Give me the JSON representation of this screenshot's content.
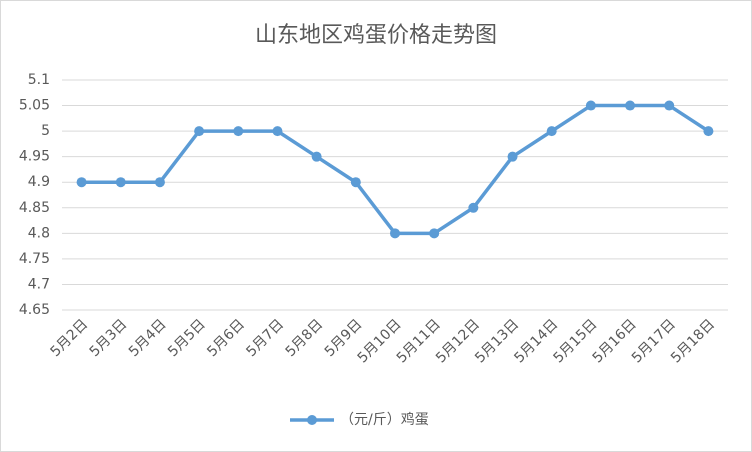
{
  "chart_data": {
    "type": "line",
    "title": "山东地区鸡蛋价格走势图",
    "categories": [
      "5月2日",
      "5月3日",
      "5月4日",
      "5月5日",
      "5月6日",
      "5月7日",
      "5月8日",
      "5月9日",
      "5月10日",
      "5月11日",
      "5月12日",
      "5月13日",
      "5月14日",
      "5月15日",
      "5月16日",
      "5月17日",
      "5月18日"
    ],
    "series": [
      {
        "name": "（元/斤）鸡蛋",
        "color": "#5b9bd5",
        "values": [
          4.9,
          4.9,
          4.9,
          5,
          5,
          5,
          4.95,
          4.9,
          4.8,
          4.8,
          4.85,
          4.95,
          5,
          5.05,
          5.05,
          5.05,
          5
        ]
      }
    ],
    "ylim": [
      4.65,
      5.1
    ],
    "yticks": [
      4.65,
      4.7,
      4.75,
      4.8,
      4.85,
      4.9,
      4.95,
      5,
      5.05,
      5.1
    ],
    "grid": true
  }
}
